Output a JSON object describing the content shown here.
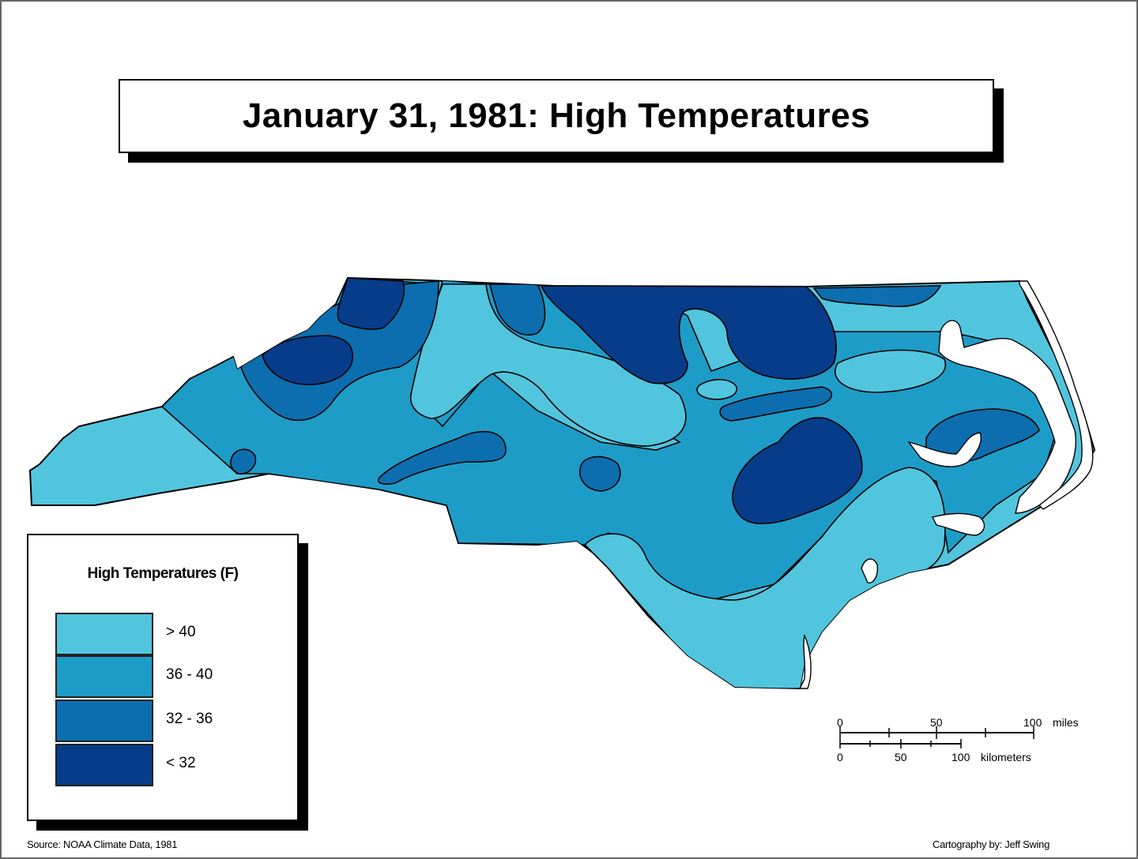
{
  "title": "January 31, 1981:  High Temperatures",
  "legend": {
    "title": "High Temperatures (F)",
    "items": [
      {
        "label": "> 40",
        "color": "#52C5DE"
      },
      {
        "label": "36 - 40",
        "color": "#1E9CC8"
      },
      {
        "label": "32 - 36",
        "color": "#0C6EAE"
      },
      {
        "label": "< 32",
        "color": "#073C8A"
      }
    ]
  },
  "scale": {
    "miles_ticks": [
      "0",
      "50",
      "100"
    ],
    "miles_unit": "miles",
    "km_ticks": [
      "0",
      "50",
      "100"
    ],
    "km_unit": "kilometers"
  },
  "footer": {
    "source": "Source:  NOAA Climate Data, 1981",
    "credit": "Cartography by:  Jeff Swing"
  }
}
